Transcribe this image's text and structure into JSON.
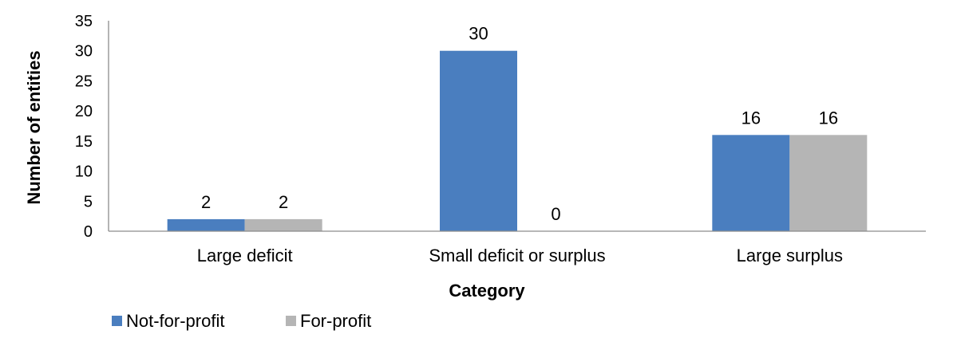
{
  "chart_data": {
    "type": "bar",
    "xlabel": "Category",
    "ylabel": "Number of entities",
    "ylim": [
      0,
      35
    ],
    "yticks": [
      0,
      5,
      10,
      15,
      20,
      25,
      30,
      35
    ],
    "categories": [
      "Large deficit",
      "Small deficit or surplus",
      "Large surplus"
    ],
    "series": [
      {
        "name": "Not-for-profit",
        "values": [
          2,
          30,
          16
        ],
        "color": "#4a7ebf"
      },
      {
        "name": "For-profit",
        "values": [
          2,
          0,
          16
        ],
        "color": "#b5b5b5"
      }
    ],
    "data_labels": true,
    "grid": false,
    "legend_position": "bottom-left"
  }
}
